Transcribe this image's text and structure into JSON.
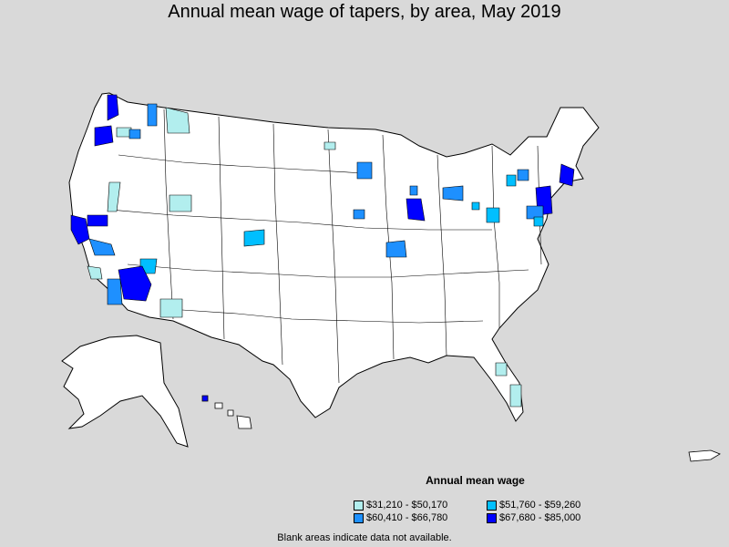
{
  "title": "Annual mean wage of tapers, by area, May 2019",
  "legend": {
    "title": "Annual mean wage",
    "items": [
      {
        "label": "$31,210 - $50,170",
        "color": "#b2eeee"
      },
      {
        "label": "$51,760 - $59,260",
        "color": "#00bfff"
      },
      {
        "label": "$60,410 - $66,780",
        "color": "#1e90ff"
      },
      {
        "label": "$67,680 - $85,000",
        "color": "#0000ff"
      }
    ]
  },
  "note": "Blank areas indicate data not available.",
  "colors": {
    "background": "#d9d9d9",
    "land": "#ffffff",
    "border": "#000000"
  }
}
